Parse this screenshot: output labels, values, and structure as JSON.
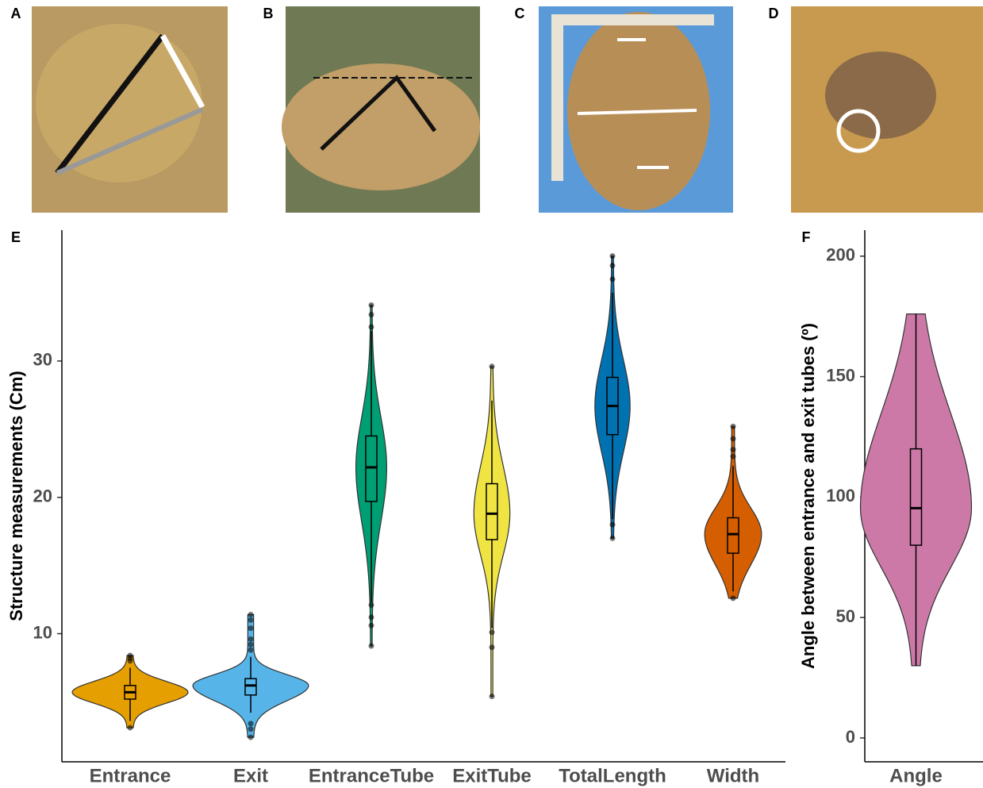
{
  "panels": [
    "A",
    "B",
    "C",
    "D"
  ],
  "chart_data": [
    {
      "type": "violin",
      "label": "E",
      "ylabel": "Structure measurements (Cm)",
      "categories": [
        "Entrance",
        "Exit",
        "EntranceTube",
        "ExitTube",
        "TotalLength",
        "Width"
      ],
      "colors": [
        "#E69F00",
        "#56B4E9",
        "#009E73",
        "#F0E442",
        "#0072B2",
        "#D55E00"
      ],
      "min": [
        3.1,
        2.4,
        9.1,
        5.4,
        17.0,
        12.6
      ],
      "whisker_low": [
        3.6,
        4.2,
        12.3,
        10.4,
        18.4,
        13.1
      ],
      "q1": [
        5.2,
        5.5,
        19.7,
        16.9,
        24.6,
        15.9
      ],
      "median": [
        5.7,
        6.2,
        22.2,
        18.8,
        26.7,
        17.3
      ],
      "q3": [
        6.2,
        6.7,
        24.5,
        21.0,
        28.8,
        18.5
      ],
      "whisker_high": [
        7.5,
        8.3,
        32.2,
        27.1,
        35.0,
        22.3
      ],
      "max": [
        8.4,
        11.4,
        34.1,
        29.6,
        37.7,
        25.2
      ],
      "outliers": [
        [
          3.1,
          8.0,
          8.2,
          8.4
        ],
        [
          2.4,
          3.0,
          3.4,
          8.8,
          9.2,
          9.6,
          10.4,
          11.0,
          11.4
        ],
        [
          9.1,
          10.6,
          11.2,
          12.1,
          32.5,
          33.4,
          34.1
        ],
        [
          5.4,
          9.0,
          10.1,
          29.6
        ],
        [
          17.0,
          18.0,
          36.0,
          37.0,
          37.7
        ],
        [
          12.6,
          23.0,
          23.5,
          24.3,
          25.2
        ]
      ],
      "ylim": [
        0.6,
        39.6
      ],
      "yticks": [
        10,
        20,
        30
      ]
    },
    {
      "type": "violin",
      "label": "F",
      "ylabel": "Angle between entrance and exit tubes (º)",
      "categories": [
        "Angle"
      ],
      "colors": [
        "#CC79A7"
      ],
      "min": [
        30
      ],
      "whisker_low": [
        30
      ],
      "q1": [
        80
      ],
      "median": [
        95.4
      ],
      "q3": [
        120
      ],
      "whisker_high": [
        176
      ],
      "max": [
        176
      ],
      "outliers": [
        []
      ],
      "ylim": [
        -9.9,
        210.8
      ],
      "yticks": [
        0,
        50,
        100,
        150,
        200
      ]
    }
  ]
}
